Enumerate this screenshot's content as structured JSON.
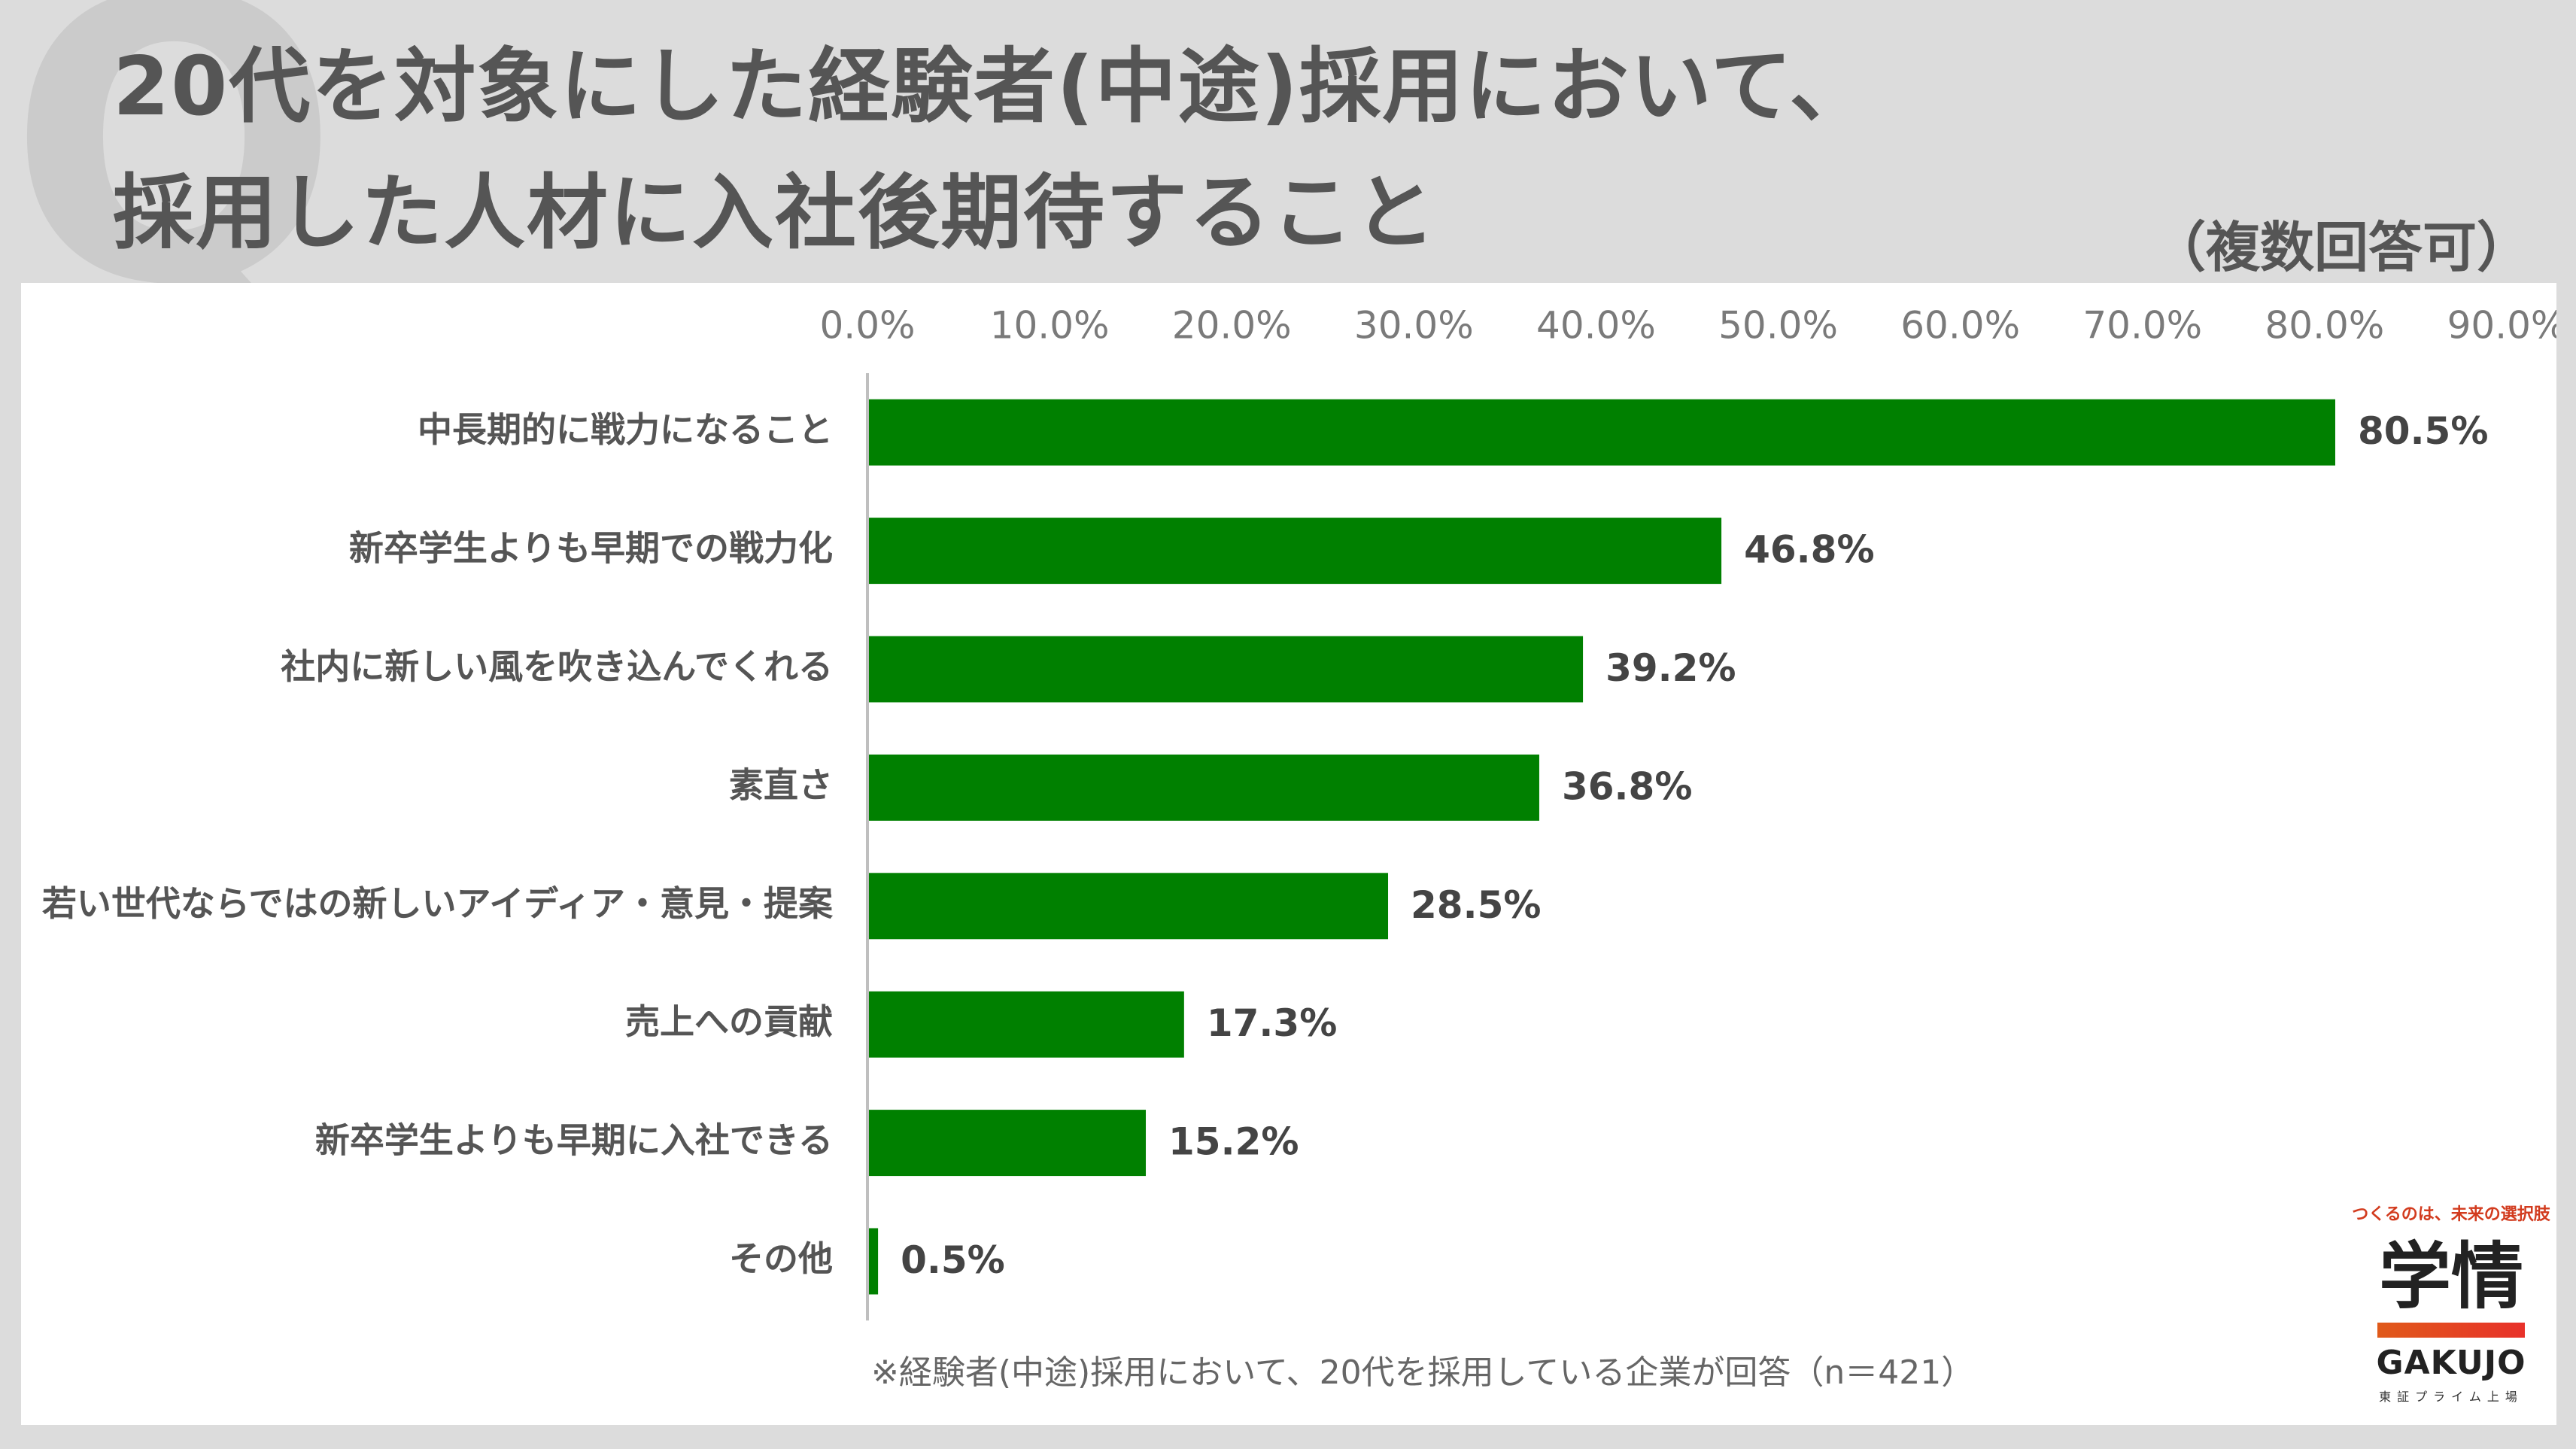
{
  "title": {
    "line1": "20代を対象にした経験者(中途)採用において、",
    "line2": "採用した人材に入社後期待すること"
  },
  "note": "（複数回答可）",
  "footnote": "※経験者(中途)採用において、20代を採用している企業が回答（n＝421）",
  "logo": {
    "tagline": "つくるのは、未来の選択肢",
    "mark": "学情",
    "brand": "GAKUJO",
    "sub": "東証プライム上場"
  },
  "colors": {
    "bar": "#008000",
    "axis": "#bfbfbf"
  },
  "chart_data": {
    "type": "bar",
    "orientation": "horizontal",
    "categories": [
      "中長期的に戦力になること",
      "新卒学生よりも早期での戦力化",
      "社内に新しい風を吹き込んでくれる",
      "素直さ",
      "若い世代ならではの新しいアイディア・意見・提案",
      "売上への貢献",
      "新卒学生よりも早期に入社できる",
      "その他"
    ],
    "values": [
      80.5,
      46.8,
      39.2,
      36.8,
      28.5,
      17.3,
      15.2,
      0.5
    ],
    "value_labels": [
      "80.5%",
      "46.8%",
      "39.2%",
      "36.8%",
      "28.5%",
      "17.3%",
      "15.2%",
      "0.5%"
    ],
    "xlim": [
      0,
      90
    ],
    "xticks": [
      0,
      10,
      20,
      30,
      40,
      50,
      60,
      70,
      80,
      90
    ],
    "xtick_labels": [
      "0.0%",
      "10.0%",
      "20.0%",
      "30.0%",
      "40.0%",
      "50.0%",
      "60.0%",
      "70.0%",
      "80.0%",
      "90.0%"
    ],
    "axis_position": "top",
    "grid": false
  }
}
